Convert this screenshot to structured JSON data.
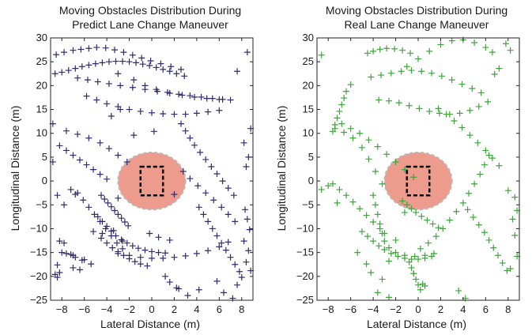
{
  "chart_data": [
    {
      "type": "scatter",
      "title_line1": "Moving Obstacles Distribution During",
      "title_line2": "Predict Lane Change Maneuver",
      "xlabel": "Lateral Distance (m)",
      "ylabel": "Longitudinal Distance (m)",
      "xlim": [
        -9,
        9
      ],
      "ylim": [
        -25,
        30
      ],
      "xticks": [
        -8,
        -6,
        -4,
        -2,
        0,
        2,
        4,
        6,
        8
      ],
      "yticks": [
        -25,
        -20,
        -15,
        -10,
        -5,
        0,
        5,
        10,
        15,
        20,
        25,
        30
      ],
      "marker": "+",
      "marker_color": "#2e2c6e",
      "safety_zone": {
        "center": [
          0,
          0
        ],
        "rx": 3,
        "ry": 6,
        "fill": "#ec9b8c"
      },
      "ego_vehicle": {
        "x": [
          -1,
          1
        ],
        "y": [
          -3,
          3
        ]
      },
      "series": [
        {
          "x": [
            -8.5,
            -7.8,
            -7.0,
            -6.3,
            -5.6,
            -4.9,
            -4.1,
            -3.3,
            -2.5,
            -1.7,
            -0.9,
            -0.1,
            0.8,
            1.7,
            2.6,
            -8.6,
            -8.0,
            -7.4,
            -6.8,
            -6.2,
            -5.6,
            -5.0,
            -4.4,
            -3.8,
            -3.2,
            -2.6,
            -2.0,
            -1.4,
            -0.8,
            -0.2,
            0.4,
            1.0,
            1.6,
            2.2,
            2.9,
            -6.6,
            -5.7,
            -4.8,
            -3.8,
            -2.8,
            -1.7,
            -0.6,
            0.5,
            1.6,
            2.7,
            3.8,
            4.9,
            6.0,
            7.0,
            -5.8,
            -4.9,
            -4.0,
            -3.0,
            -2.0,
            -1.0,
            0.0,
            1.0,
            2.0,
            3.0,
            4.0,
            5.0,
            6.0,
            -7.6,
            -6.6,
            -5.6,
            -4.6,
            -3.8,
            -3.0,
            -2.2,
            -3.0,
            -1.6,
            -0.6,
            0.4,
            1.4,
            2.4,
            3.4,
            4.4,
            5.4,
            6.3,
            -8.2,
            -7.6,
            -7.0,
            -6.4,
            -5.8,
            -5.2,
            -4.6,
            -4.0,
            -6.6,
            -6.1,
            -5.6,
            -5.1,
            -4.6,
            -4.1,
            -3.6,
            -3.1,
            -2.6,
            2.8,
            3.4,
            4.1,
            4.8,
            5.5,
            6.2,
            6.8,
            7.4,
            2.6,
            3.0,
            3.4,
            3.8,
            4.3,
            4.8,
            5.3,
            5.8,
            6.3,
            6.8,
            7.3,
            4.2,
            4.6,
            5.0,
            5.4,
            5.8,
            6.2,
            6.6,
            7.0,
            7.4,
            7.8,
            -4.8,
            -4.4,
            -4.0,
            -3.6,
            -3.2,
            -2.7,
            -2.2,
            -1.7,
            -1.2,
            -0.6,
            0.0,
            0.6,
            1.2,
            -4.5,
            -4.0,
            -3.5,
            -3.0,
            -2.5,
            -2.0,
            -1.5,
            -1.0,
            -0.4,
            -3.0,
            -2.0,
            -1.0,
            0.0,
            1.0,
            2.0,
            3.0,
            4.0,
            5.0,
            6.0,
            6.8,
            -4.5,
            -4.2,
            -3.9,
            -3.6,
            -3.3,
            -3.0,
            -2.7,
            -2.4,
            -2.1,
            -8.0,
            -7.6,
            -7.2,
            -7.0,
            -6.8,
            -6.2,
            -8.4,
            -7.0,
            -8.6,
            -8.4,
            -8.2,
            -6.0,
            -5.4,
            -6.4,
            -8.2,
            -7.8,
            -5.2,
            -4.4,
            -6.8,
            1.2,
            1.6,
            2.2,
            -2.6,
            -3.4,
            -3.0,
            8.3,
            8.5,
            8.7,
            8.2,
            8.6,
            8.4,
            8.8,
            8.0,
            7.6,
            8.4,
            8.6,
            8.2,
            8.8,
            7.6,
            8.5,
            -8.8,
            -8.8,
            -8.4,
            -7.8,
            -7.2,
            2.4,
            3.2,
            4.2,
            5.8,
            6.4,
            7.2,
            -0.2,
            0.6,
            1.6,
            -2.8,
            -3.6,
            -1.6,
            0.2,
            2.0
          ],
          "y": [
            26.5,
            27.0,
            27.4,
            27.6,
            27.8,
            28.0,
            27.9,
            27.5,
            27.0,
            26.4,
            25.8,
            25.2,
            24.6,
            24.0,
            23.4,
            22.5,
            22.8,
            23.2,
            23.6,
            24.0,
            24.3,
            24.6,
            24.8,
            25.0,
            25.1,
            25.1,
            25.0,
            24.8,
            24.5,
            24.2,
            23.8,
            23.4,
            23.0,
            22.5,
            22.0,
            21.6,
            21.2,
            20.8,
            20.4,
            20.0,
            19.6,
            19.2,
            18.8,
            18.4,
            18.0,
            17.6,
            17.3,
            17.1,
            17.0,
            17.8,
            17.0,
            16.2,
            15.6,
            15.0,
            14.6,
            14.3,
            14.1,
            14.0,
            14.0,
            14.2,
            14.5,
            14.8,
            10.5,
            9.8,
            9.0,
            8.0,
            6.8,
            5.4,
            4.0,
            22.5,
            21.2,
            20.0,
            19.2,
            18.6,
            18.2,
            17.9,
            17.6,
            17.3,
            17.1,
            7.4,
            6.4,
            5.4,
            4.4,
            3.4,
            2.4,
            1.4,
            0.4,
            -2.5,
            -4.0,
            -5.5,
            -7.0,
            -8.5,
            -10.0,
            -11.5,
            -13.0,
            -14.2,
            2.0,
            0.5,
            -1.0,
            -2.5,
            -4.0,
            -5.5,
            -7.0,
            -8.5,
            12.0,
            10.5,
            9.0,
            7.5,
            6.0,
            4.5,
            3.0,
            1.5,
            0.0,
            -1.5,
            -3.0,
            -5.5,
            -7.0,
            -8.5,
            -10.0,
            -11.5,
            -13.0,
            -14.5,
            -16.0,
            -17.5,
            -19.0,
            -7.5,
            -8.5,
            -9.5,
            -10.5,
            -11.5,
            -12.3,
            -13.0,
            -13.6,
            -14.1,
            -14.5,
            -14.8,
            -15.0,
            -15.1,
            -12.0,
            -13.0,
            -14.0,
            -14.8,
            -15.6,
            -16.3,
            -16.9,
            -17.4,
            -17.8,
            -15.2,
            -15.6,
            -16.0,
            -16.2,
            -16.2,
            -16.0,
            -15.7,
            -15.2,
            -14.6,
            -13.8,
            -12.8,
            -3.0,
            -3.8,
            -4.6,
            -5.4,
            -6.2,
            -7.0,
            -7.8,
            -8.6,
            -9.4,
            -15.0,
            -15.2,
            -15.4,
            -15.6,
            -16.0,
            -16.6,
            -17.6,
            -18.2,
            -19.6,
            -20.2,
            -19.2,
            -16.5,
            -17.4,
            -18.6,
            -12.6,
            -13.0,
            -10.6,
            -11.0,
            -2.8,
            -20.0,
            -21.2,
            -22.4,
            -12.6,
            -10.4,
            -3.6,
            -6.0,
            -8.0,
            -10.2,
            -12.6,
            -14.6,
            -17.0,
            -18.8,
            -20.2,
            -21.8,
            3.0,
            5.0,
            8.0,
            11.0,
            23.0,
            27.0,
            12.0,
            4.0,
            -3.0,
            -5.0,
            -1.8,
            -22.6,
            -24.0,
            -22.8,
            -21.0,
            -23.4,
            -24.6,
            -11.0,
            -11.8,
            -12.4,
            15.0,
            13.6,
            9.6,
            10.4,
            -2.8
          ]
        }
      ]
    },
    {
      "type": "scatter",
      "title_line1": "Moving Obstacles Distribution During",
      "title_line2": "Real Lane Change Maneuver",
      "xlabel": "Lateral Distance (m)",
      "ylabel": "Longitudinal Distance (m)",
      "xlim": [
        -9,
        9
      ],
      "ylim": [
        -25,
        30
      ],
      "xticks": [
        -8,
        -6,
        -4,
        -2,
        0,
        2,
        4,
        6,
        8
      ],
      "yticks": [
        -25,
        -20,
        -15,
        -10,
        -5,
        0,
        5,
        10,
        15,
        20,
        25,
        30
      ],
      "marker": "+",
      "marker_color": "#3da53a",
      "safety_zone": {
        "center": [
          0,
          0
        ],
        "rx": 3,
        "ry": 6,
        "fill": "#ec9b8c"
      },
      "ego_vehicle": {
        "x": [
          -1,
          1
        ],
        "y": [
          -3,
          3
        ]
      },
      "series": [
        {
          "x": [
            -3.5,
            -2.6,
            -1.7,
            -0.8,
            0.1,
            1.0,
            1.9,
            2.8,
            3.7,
            4.6,
            5.4,
            6.2,
            -4.2,
            -3.3,
            -2.4,
            -1.5,
            -0.6,
            0.3,
            1.2,
            2.1,
            3.0,
            3.9,
            4.8,
            5.6,
            -4.5,
            -4.0,
            -3.4,
            -2.8,
            -2.1,
            -1.4,
            -0.7,
            -6.8,
            -6.0,
            -5.2,
            -4.4,
            -3.6,
            -2.8,
            -2.0,
            -1.2,
            -0.4,
            -7.4,
            -6.6,
            -5.8,
            -5.0,
            -4.4,
            -3.8,
            -3.2,
            -4.0,
            -3.8,
            -3.6,
            -3.4,
            -3.2,
            -3.0,
            -2.6,
            -2.0,
            -1.2,
            -0.3,
            0.6,
            1.4,
            0.2,
            0.9,
            1.6,
            2.2,
            2.8,
            3.4,
            4.0,
            4.5,
            5.0,
            5.5,
            5.9,
            6.3,
            1.8,
            2.5,
            3.2,
            3.9,
            4.6,
            5.3,
            6.0,
            6.6,
            7.2,
            4.4,
            4.9,
            5.4,
            5.9,
            6.3,
            6.7,
            7.1,
            7.5,
            7.9,
            -5.0,
            -4.5,
            -4.0,
            -3.5,
            -3.0,
            -2.4,
            -1.8,
            -1.2,
            -0.6,
            0.0,
            0.6,
            1.2,
            -7.6,
            -7.0,
            -6.4,
            -5.8,
            -5.2,
            -4.6,
            -4.0,
            -3.4,
            -7.6,
            -7.4,
            -7.2,
            -7.0,
            -6.8,
            -6.6,
            -6.4,
            -6.0,
            -1.0,
            0.0,
            1.0,
            2.0,
            3.0,
            4.0,
            5.0,
            6.0,
            6.6,
            -1.4,
            -1.0,
            -0.6,
            -0.2,
            0.3,
            0.8,
            1.3,
            1.8,
            -0.8,
            -0.6,
            -0.4,
            -0.2,
            0.0,
            0.2,
            -8.6,
            -8.6,
            8.4,
            8.6,
            8.8,
            8.2,
            8.6,
            8.8,
            8.0,
            -4.6,
            -4.2,
            -5.4,
            -2.6,
            -3.2,
            -8.0,
            -7.2,
            -3.6,
            -2.6,
            0.6,
            -1.2,
            6.8,
            7.2,
            8.2,
            7.8,
            4.2,
            3.6,
            -0.4,
            0.4,
            -3.0,
            -2.0
          ],
          "y": [
            17.0,
            16.8,
            16.4,
            15.8,
            15.2,
            14.6,
            14.2,
            14.0,
            14.2,
            14.8,
            15.6,
            16.6,
            21.8,
            22.2,
            22.6,
            23.0,
            23.2,
            23.0,
            22.6,
            22.0,
            21.2,
            20.3,
            19.4,
            18.5,
            26.8,
            27.2,
            27.6,
            27.8,
            27.7,
            27.4,
            26.8,
            12.0,
            11.0,
            10.0,
            8.6,
            7.2,
            5.6,
            4.0,
            2.4,
            0.8,
            11.0,
            10.2,
            9.0,
            7.0,
            4.6,
            2.0,
            -0.6,
            -3.0,
            -5.0,
            -7.0,
            -9.0,
            -11.0,
            -12.6,
            -14.0,
            -15.0,
            -15.6,
            -15.8,
            -15.6,
            -15.2,
            -14.2,
            -13.0,
            -11.6,
            -10.0,
            -8.2,
            -6.4,
            -4.6,
            -2.6,
            -0.6,
            1.4,
            3.4,
            5.4,
            15.2,
            14.0,
            12.6,
            11.2,
            9.6,
            8.0,
            6.4,
            4.8,
            3.2,
            -6.0,
            -7.6,
            -9.2,
            -10.8,
            -12.4,
            -14.0,
            -15.6,
            -17.2,
            -18.8,
            -10.6,
            -11.6,
            -12.6,
            -13.6,
            -14.4,
            -15.2,
            -15.8,
            -16.2,
            -16.4,
            -16.4,
            -16.2,
            -15.8,
            -0.6,
            -1.8,
            -3.0,
            -4.4,
            -5.8,
            -7.2,
            -8.6,
            -10.0,
            10.4,
            11.8,
            13.2,
            14.6,
            16.0,
            17.4,
            18.8,
            20.2,
            24.0,
            25.6,
            27.2,
            28.6,
            29.4,
            29.6,
            29.0,
            28.0,
            27.0,
            -4.2,
            -5.0,
            -5.8,
            -6.6,
            -7.4,
            -8.2,
            -9.0,
            -9.8,
            -17.0,
            -18.2,
            -19.4,
            -20.6,
            -21.8,
            -22.8,
            26.4,
            -1.8,
            -8.0,
            -11.4,
            -15.8,
            -18.4,
            -3.4,
            -6.2,
            -2.0,
            -17.4,
            -19.2,
            -15.0,
            -16.8,
            -20.6,
            -1.0,
            -4.6,
            -23.4,
            -24.4,
            -22.0,
            -6.6,
            22.4,
            23.6,
            27.4,
            28.8,
            -24.6,
            -23.0,
            -19.4,
            -21.6,
            -11.0,
            -12.4
          ]
        }
      ]
    }
  ]
}
